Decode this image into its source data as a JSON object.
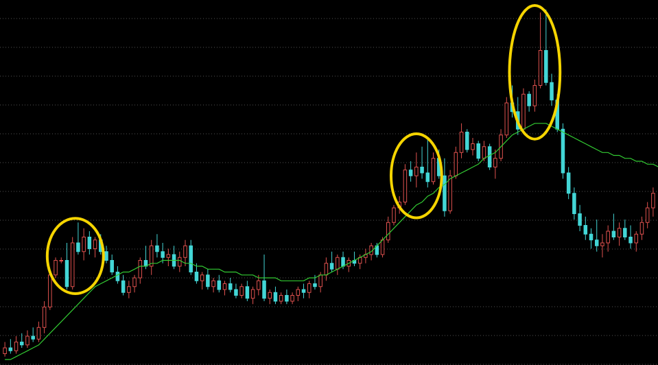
{
  "chart_data": {
    "type": "candlestick",
    "title": "",
    "xlabel": "",
    "ylabel": "",
    "ylim": [
      0,
      100
    ],
    "grid": true,
    "grid_style": "dotted-horizontal",
    "colors": {
      "background": "#000000",
      "up": "#e0524f",
      "down": "#43d6d6",
      "moving_average": "#33cc33",
      "highlight_circle": "#f5d400",
      "grid": "#555555"
    },
    "series": [
      {
        "kind": "candles",
        "candles": [
          {
            "o": 3,
            "h": 7,
            "l": 2,
            "c": 5
          },
          {
            "o": 5,
            "h": 8,
            "l": 3,
            "c": 4
          },
          {
            "o": 4,
            "h": 9,
            "l": 3,
            "c": 7
          },
          {
            "o": 7,
            "h": 10,
            "l": 5,
            "c": 6
          },
          {
            "o": 6,
            "h": 11,
            "l": 5,
            "c": 9
          },
          {
            "o": 9,
            "h": 12,
            "l": 7,
            "c": 8
          },
          {
            "o": 8,
            "h": 14,
            "l": 7,
            "c": 12
          },
          {
            "o": 12,
            "h": 21,
            "l": 10,
            "c": 19
          },
          {
            "o": 19,
            "h": 31,
            "l": 18,
            "c": 30
          },
          {
            "o": 30,
            "h": 36,
            "l": 29,
            "c": 35
          },
          {
            "o": 35,
            "h": 36,
            "l": 34,
            "c": 35
          },
          {
            "o": 35,
            "h": 41,
            "l": 25,
            "c": 26
          },
          {
            "o": 26,
            "h": 43,
            "l": 25,
            "c": 41
          },
          {
            "o": 41,
            "h": 48,
            "l": 37,
            "c": 38
          },
          {
            "o": 38,
            "h": 46,
            "l": 35,
            "c": 43
          },
          {
            "o": 43,
            "h": 45,
            "l": 37,
            "c": 39
          },
          {
            "o": 39,
            "h": 43,
            "l": 36,
            "c": 42
          },
          {
            "o": 42,
            "h": 44,
            "l": 37,
            "c": 38
          },
          {
            "o": 38,
            "h": 40,
            "l": 34,
            "c": 35
          },
          {
            "o": 35,
            "h": 37,
            "l": 30,
            "c": 31
          },
          {
            "o": 31,
            "h": 33,
            "l": 27,
            "c": 28
          },
          {
            "o": 28,
            "h": 30,
            "l": 23,
            "c": 24
          },
          {
            "o": 24,
            "h": 28,
            "l": 22,
            "c": 26
          },
          {
            "o": 26,
            "h": 30,
            "l": 24,
            "c": 29
          },
          {
            "o": 29,
            "h": 36,
            "l": 27,
            "c": 35
          },
          {
            "o": 35,
            "h": 40,
            "l": 32,
            "c": 33
          },
          {
            "o": 33,
            "h": 42,
            "l": 30,
            "c": 40
          },
          {
            "o": 40,
            "h": 44,
            "l": 36,
            "c": 38
          },
          {
            "o": 38,
            "h": 41,
            "l": 34,
            "c": 36
          },
          {
            "o": 36,
            "h": 39,
            "l": 33,
            "c": 37
          },
          {
            "o": 37,
            "h": 40,
            "l": 32,
            "c": 33
          },
          {
            "o": 33,
            "h": 38,
            "l": 31,
            "c": 36
          },
          {
            "o": 36,
            "h": 42,
            "l": 33,
            "c": 40
          },
          {
            "o": 40,
            "h": 42,
            "l": 30,
            "c": 31
          },
          {
            "o": 31,
            "h": 34,
            "l": 27,
            "c": 28
          },
          {
            "o": 28,
            "h": 31,
            "l": 25,
            "c": 30
          },
          {
            "o": 30,
            "h": 32,
            "l": 25,
            "c": 26
          },
          {
            "o": 26,
            "h": 29,
            "l": 24,
            "c": 28
          },
          {
            "o": 28,
            "h": 30,
            "l": 24,
            "c": 25
          },
          {
            "o": 25,
            "h": 28,
            "l": 23,
            "c": 27
          },
          {
            "o": 27,
            "h": 29,
            "l": 24,
            "c": 25
          },
          {
            "o": 25,
            "h": 27,
            "l": 22,
            "c": 23
          },
          {
            "o": 23,
            "h": 27,
            "l": 22,
            "c": 26
          },
          {
            "o": 26,
            "h": 28,
            "l": 21,
            "c": 22
          },
          {
            "o": 22,
            "h": 26,
            "l": 20,
            "c": 25
          },
          {
            "o": 25,
            "h": 30,
            "l": 23,
            "c": 28
          },
          {
            "o": 28,
            "h": 37,
            "l": 21,
            "c": 22
          },
          {
            "o": 22,
            "h": 25,
            "l": 20,
            "c": 24
          },
          {
            "o": 24,
            "h": 26,
            "l": 20,
            "c": 21
          },
          {
            "o": 21,
            "h": 24,
            "l": 20,
            "c": 23
          },
          {
            "o": 23,
            "h": 25,
            "l": 20,
            "c": 21
          },
          {
            "o": 21,
            "h": 24,
            "l": 20,
            "c": 23
          },
          {
            "o": 23,
            "h": 26,
            "l": 21,
            "c": 25
          },
          {
            "o": 25,
            "h": 27,
            "l": 22,
            "c": 24
          },
          {
            "o": 24,
            "h": 28,
            "l": 22,
            "c": 27
          },
          {
            "o": 27,
            "h": 30,
            "l": 25,
            "c": 26
          },
          {
            "o": 26,
            "h": 31,
            "l": 24,
            "c": 30
          },
          {
            "o": 30,
            "h": 36,
            "l": 28,
            "c": 34
          },
          {
            "o": 34,
            "h": 38,
            "l": 31,
            "c": 32
          },
          {
            "o": 32,
            "h": 37,
            "l": 30,
            "c": 36
          },
          {
            "o": 36,
            "h": 38,
            "l": 32,
            "c": 33
          },
          {
            "o": 33,
            "h": 36,
            "l": 31,
            "c": 35
          },
          {
            "o": 35,
            "h": 38,
            "l": 33,
            "c": 34
          },
          {
            "o": 34,
            "h": 37,
            "l": 32,
            "c": 36
          },
          {
            "o": 36,
            "h": 39,
            "l": 34,
            "c": 37
          },
          {
            "o": 37,
            "h": 41,
            "l": 35,
            "c": 40
          },
          {
            "o": 40,
            "h": 41,
            "l": 36,
            "c": 37
          },
          {
            "o": 37,
            "h": 43,
            "l": 36,
            "c": 42
          },
          {
            "o": 42,
            "h": 50,
            "l": 41,
            "c": 48
          },
          {
            "o": 48,
            "h": 54,
            "l": 47,
            "c": 53
          },
          {
            "o": 53,
            "h": 57,
            "l": 51,
            "c": 55
          },
          {
            "o": 55,
            "h": 68,
            "l": 54,
            "c": 66
          },
          {
            "o": 66,
            "h": 69,
            "l": 62,
            "c": 64
          },
          {
            "o": 64,
            "h": 72,
            "l": 60,
            "c": 67
          },
          {
            "o": 67,
            "h": 74,
            "l": 63,
            "c": 65
          },
          {
            "o": 65,
            "h": 77,
            "l": 60,
            "c": 62
          },
          {
            "o": 62,
            "h": 72,
            "l": 61,
            "c": 70
          },
          {
            "o": 70,
            "h": 73,
            "l": 63,
            "c": 64
          },
          {
            "o": 64,
            "h": 70,
            "l": 50,
            "c": 52
          },
          {
            "o": 52,
            "h": 66,
            "l": 51,
            "c": 64
          },
          {
            "o": 64,
            "h": 74,
            "l": 63,
            "c": 72
          },
          {
            "o": 72,
            "h": 82,
            "l": 70,
            "c": 79
          },
          {
            "o": 79,
            "h": 80,
            "l": 72,
            "c": 73
          },
          {
            "o": 73,
            "h": 77,
            "l": 71,
            "c": 75
          },
          {
            "o": 75,
            "h": 76,
            "l": 69,
            "c": 70
          },
          {
            "o": 70,
            "h": 76,
            "l": 69,
            "c": 74
          },
          {
            "o": 74,
            "h": 75,
            "l": 66,
            "c": 67
          },
          {
            "o": 67,
            "h": 73,
            "l": 63,
            "c": 70
          },
          {
            "o": 70,
            "h": 80,
            "l": 69,
            "c": 78
          },
          {
            "o": 78,
            "h": 91,
            "l": 77,
            "c": 89
          },
          {
            "o": 89,
            "h": 95,
            "l": 84,
            "c": 86
          },
          {
            "o": 86,
            "h": 91,
            "l": 78,
            "c": 80
          },
          {
            "o": 80,
            "h": 94,
            "l": 79,
            "c": 92
          },
          {
            "o": 92,
            "h": 93,
            "l": 86,
            "c": 88
          },
          {
            "o": 88,
            "h": 97,
            "l": 86,
            "c": 95
          },
          {
            "o": 95,
            "h": 120,
            "l": 94,
            "c": 107
          },
          {
            "o": 107,
            "h": 121,
            "l": 95,
            "c": 96
          },
          {
            "o": 96,
            "h": 99,
            "l": 88,
            "c": 90
          },
          {
            "o": 90,
            "h": 92,
            "l": 79,
            "c": 80
          },
          {
            "o": 80,
            "h": 82,
            "l": 63,
            "c": 65
          },
          {
            "o": 65,
            "h": 67,
            "l": 56,
            "c": 58
          },
          {
            "o": 58,
            "h": 60,
            "l": 49,
            "c": 51
          },
          {
            "o": 51,
            "h": 54,
            "l": 45,
            "c": 47
          },
          {
            "o": 47,
            "h": 50,
            "l": 42,
            "c": 44
          },
          {
            "o": 44,
            "h": 46,
            "l": 39,
            "c": 42
          },
          {
            "o": 42,
            "h": 49,
            "l": 38,
            "c": 40
          },
          {
            "o": 40,
            "h": 44,
            "l": 36,
            "c": 41
          },
          {
            "o": 41,
            "h": 47,
            "l": 38,
            "c": 45
          },
          {
            "o": 45,
            "h": 51,
            "l": 42,
            "c": 43
          },
          {
            "o": 43,
            "h": 48,
            "l": 40,
            "c": 46
          },
          {
            "o": 46,
            "h": 49,
            "l": 42,
            "c": 43
          },
          {
            "o": 43,
            "h": 47,
            "l": 39,
            "c": 41
          },
          {
            "o": 41,
            "h": 45,
            "l": 38,
            "c": 44
          },
          {
            "o": 44,
            "h": 50,
            "l": 42,
            "c": 48
          },
          {
            "o": 48,
            "h": 55,
            "l": 46,
            "c": 53
          },
          {
            "o": 53,
            "h": 60,
            "l": 50,
            "c": 58
          }
        ]
      },
      {
        "kind": "line",
        "values": [
          1,
          1,
          2,
          3,
          4,
          5,
          6,
          8,
          10,
          12,
          14,
          16,
          18,
          20,
          22,
          24,
          26,
          27,
          28,
          29,
          30,
          31,
          31,
          32,
          33,
          33,
          34,
          34,
          35,
          35,
          35,
          35,
          34,
          34,
          33,
          33,
          32,
          32,
          32,
          31,
          31,
          31,
          30,
          30,
          30,
          29,
          29,
          29,
          29,
          28,
          28,
          28,
          28,
          28,
          29,
          29,
          30,
          30,
          31,
          32,
          33,
          34,
          35,
          36,
          37,
          38,
          40,
          42,
          44,
          46,
          48,
          50,
          52,
          54,
          55,
          57,
          58,
          60,
          61,
          63,
          64,
          65,
          66,
          67,
          68,
          70,
          71,
          72,
          74,
          76,
          78,
          79,
          80,
          81,
          82,
          82,
          82,
          81,
          80,
          79,
          78,
          77,
          76,
          75,
          74,
          73,
          72,
          72,
          71,
          71,
          70,
          70,
          69,
          69,
          68,
          68,
          67,
          67,
          66,
          65
        ]
      }
    ],
    "highlights": [
      {
        "candle_from": 9,
        "candle_to": 16
      },
      {
        "candle_from": 70,
        "candle_to": 76
      },
      {
        "candle_from": 91,
        "candle_to": 97
      }
    ]
  }
}
